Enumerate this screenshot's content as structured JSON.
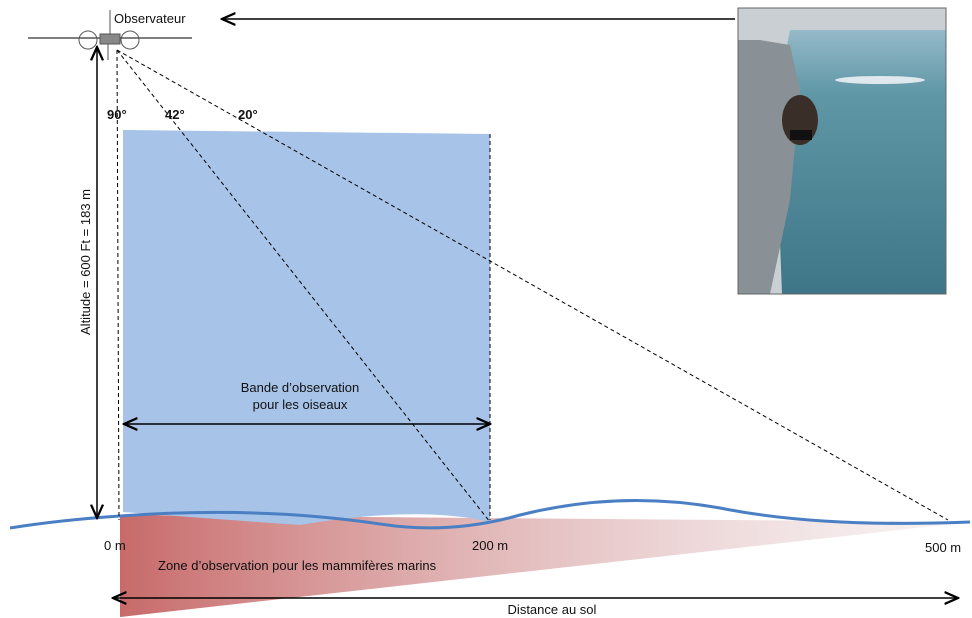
{
  "labels": {
    "observer": "Observateur",
    "angle_90": "90°",
    "angle_42": "42°",
    "angle_20": "20°",
    "altitude": "Altitude = 600 Ft = 183 m",
    "bird_band_line1": "Bande d’observation",
    "bird_band_line2": "pour les oiseaux",
    "dist_0": "0 m",
    "dist_200": "200 m",
    "dist_500": "500 m",
    "mammal_zone": "Zone d’observation pour les mammifères marins",
    "ground_distance": "Distance au sol"
  }
}
